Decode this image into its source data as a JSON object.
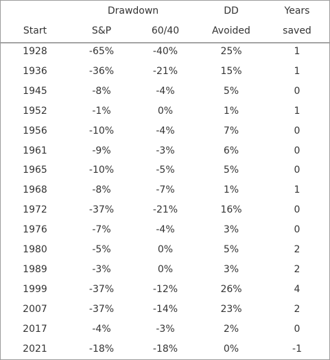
{
  "table": {
    "group_headers": [
      "Drawdown",
      "DD",
      "Years"
    ],
    "headers": [
      "Start",
      "S&P",
      "60/40",
      "Avoided",
      "saved"
    ],
    "rows": [
      [
        "1928",
        "-65%",
        "-40%",
        "25%",
        "1"
      ],
      [
        "1936",
        "-36%",
        "-21%",
        "15%",
        "1"
      ],
      [
        "1945",
        "-8%",
        "-4%",
        "5%",
        "0"
      ],
      [
        "1952",
        "-1%",
        "0%",
        "1%",
        "1"
      ],
      [
        "1956",
        "-10%",
        "-4%",
        "7%",
        "0"
      ],
      [
        "1961",
        "-9%",
        "-3%",
        "6%",
        "0"
      ],
      [
        "1965",
        "-10%",
        "-5%",
        "5%",
        "0"
      ],
      [
        "1968",
        "-8%",
        "-7%",
        "1%",
        "1"
      ],
      [
        "1972",
        "-37%",
        "-21%",
        "16%",
        "0"
      ],
      [
        "1976",
        "-7%",
        "-4%",
        "3%",
        "0"
      ],
      [
        "1980",
        "-5%",
        "0%",
        "5%",
        "2"
      ],
      [
        "1989",
        "-3%",
        "0%",
        "3%",
        "2"
      ],
      [
        "1999",
        "-37%",
        "-12%",
        "26%",
        "4"
      ],
      [
        "2007",
        "-37%",
        "-14%",
        "23%",
        "2"
      ],
      [
        "2017",
        "-4%",
        "-3%",
        "2%",
        "0"
      ],
      [
        "2021",
        "-18%",
        "-18%",
        "0%",
        "-1"
      ]
    ]
  }
}
